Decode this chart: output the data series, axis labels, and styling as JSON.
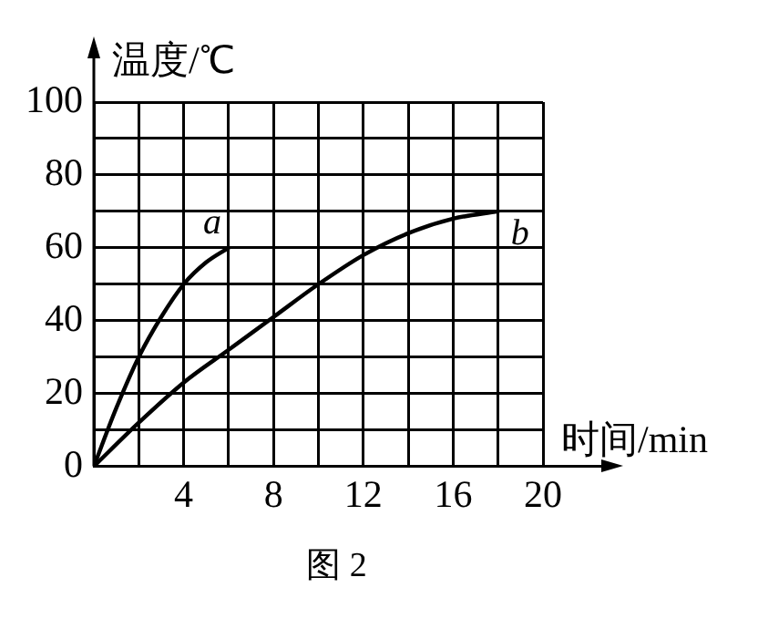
{
  "chart_data": {
    "type": "line",
    "xlabel": "时间/min",
    "ylabel": "温度/℃",
    "annotations": [
      "图 2"
    ],
    "xlim": [
      0,
      20
    ],
    "ylim": [
      0,
      100
    ],
    "xticks": [
      {
        "value": 0,
        "label": null
      },
      {
        "value": 2,
        "label": null
      },
      4,
      {
        "value": 6,
        "label": null
      },
      8,
      {
        "value": 10,
        "label": null
      },
      12,
      {
        "value": 14,
        "label": null
      },
      16,
      {
        "value": 18,
        "label": null
      },
      20
    ],
    "yticks": [
      0,
      {
        "value": 10,
        "label": null
      },
      20,
      {
        "value": 30,
        "label": null
      },
      40,
      {
        "value": 50,
        "label": null
      },
      60,
      {
        "value": 70,
        "label": null
      },
      80,
      {
        "value": 90,
        "label": null
      },
      100
    ],
    "grid": true,
    "legend": false,
    "marker": "none",
    "line_style": "solid",
    "series": [
      {
        "name": "a",
        "color": "#000000",
        "x": [
          0,
          1,
          2,
          3,
          4,
          5,
          6
        ],
        "values": [
          0,
          16,
          30,
          41,
          50,
          56,
          60
        ]
      },
      {
        "name": "b",
        "color": "#000000",
        "x": [
          0,
          2,
          4,
          6,
          8,
          10,
          12,
          14,
          16,
          18
        ],
        "values": [
          0,
          12,
          23,
          32,
          41,
          50,
          58,
          64,
          68,
          70
        ]
      }
    ]
  }
}
